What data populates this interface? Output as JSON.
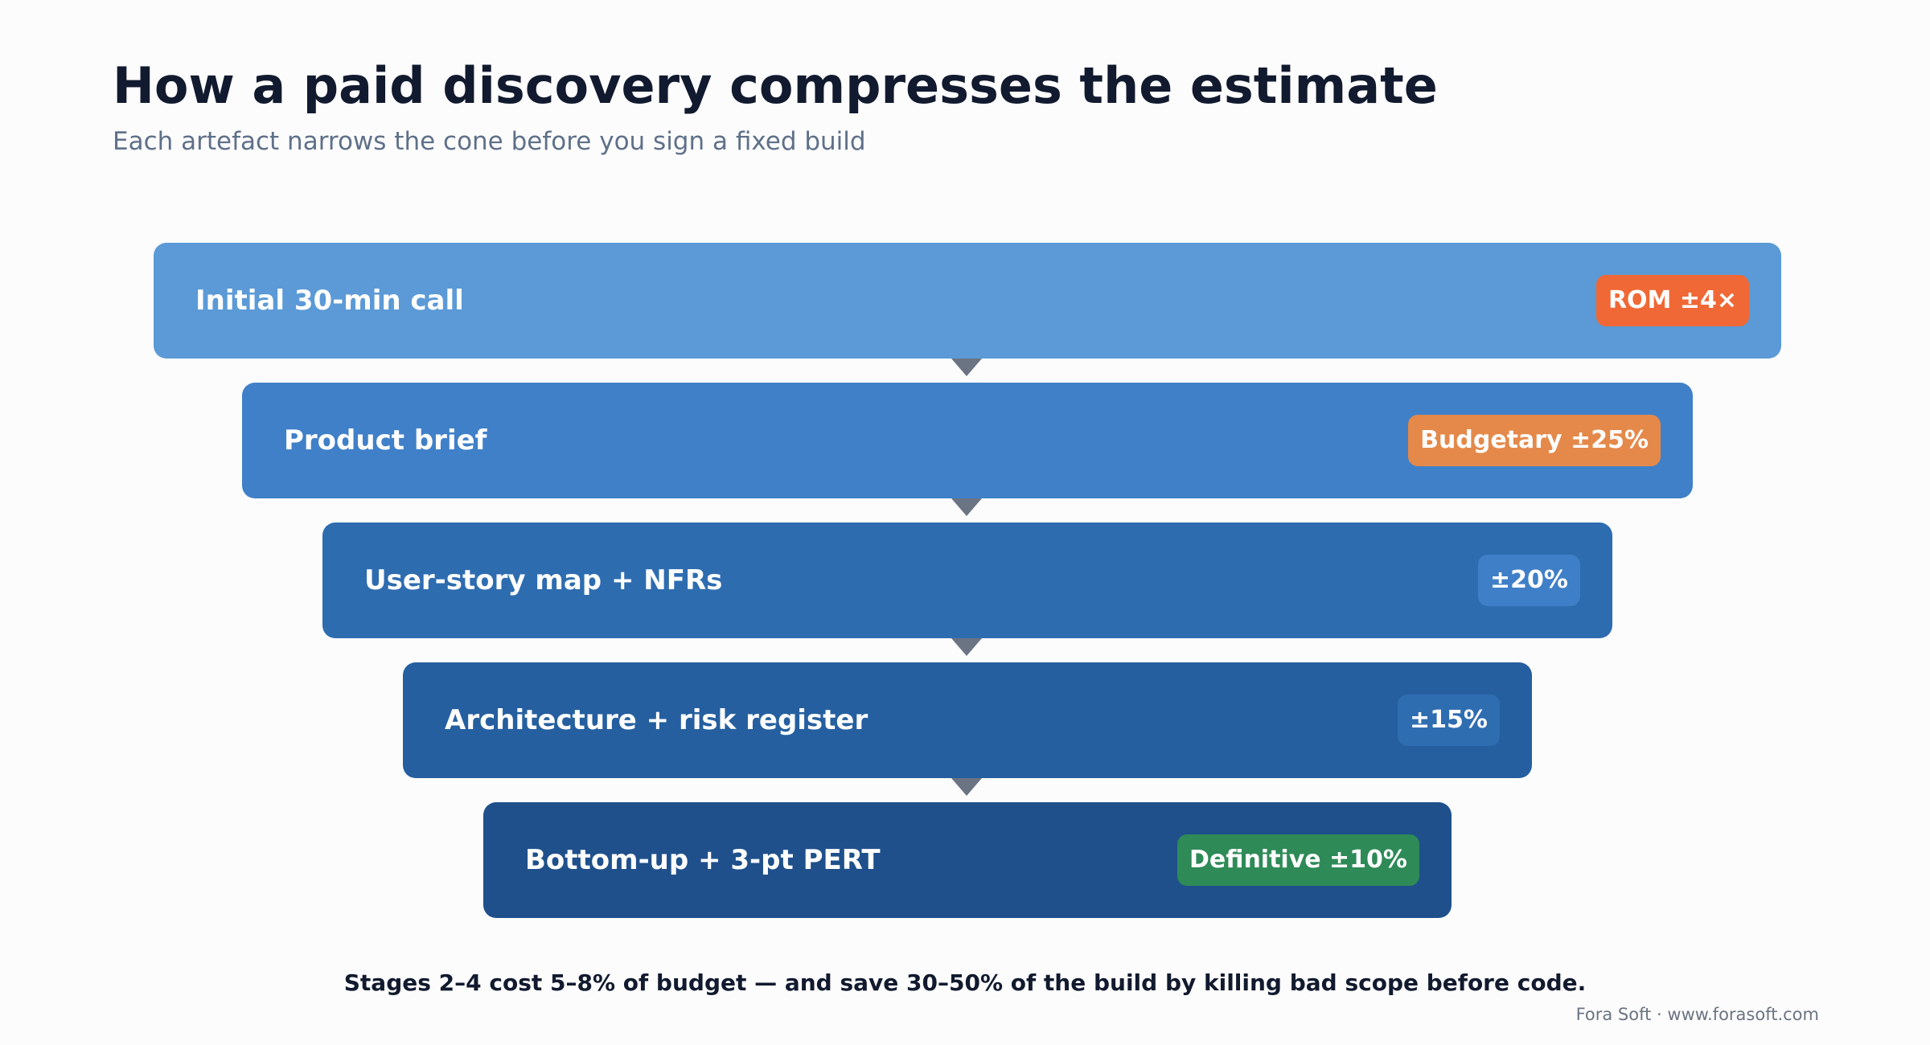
{
  "header": {
    "title": "How a paid discovery compresses the estimate",
    "subtitle": "Each artefact narrows the cone before you sign a fixed build"
  },
  "stages": [
    {
      "label": "Initial 30-min call",
      "badge": "ROM ±4×",
      "bar_color": "#5b9ad6",
      "badge_color": "#f06835"
    },
    {
      "label": "Product brief",
      "badge": "Budgetary ±25%",
      "bar_color": "#4080c8",
      "badge_color": "#e4894a"
    },
    {
      "label": "User-story map + NFRs",
      "badge": "±20%",
      "bar_color": "#2e6cb0",
      "badge_color": "#3f7fc7"
    },
    {
      "label": "Architecture + risk register",
      "badge": "±15%",
      "bar_color": "#255f9f",
      "badge_color": "#2f6db1"
    },
    {
      "label": "Bottom-up + 3-pt PERT",
      "badge": "Definitive ±10%",
      "bar_color": "#1f508b",
      "badge_color": "#2e8a57"
    }
  ],
  "footnote": "Stages 2–4 cost 5–8% of budget — and save 30–50% of the build by killing bad scope before code.",
  "credit": "Fora Soft · www.forasoft.com"
}
